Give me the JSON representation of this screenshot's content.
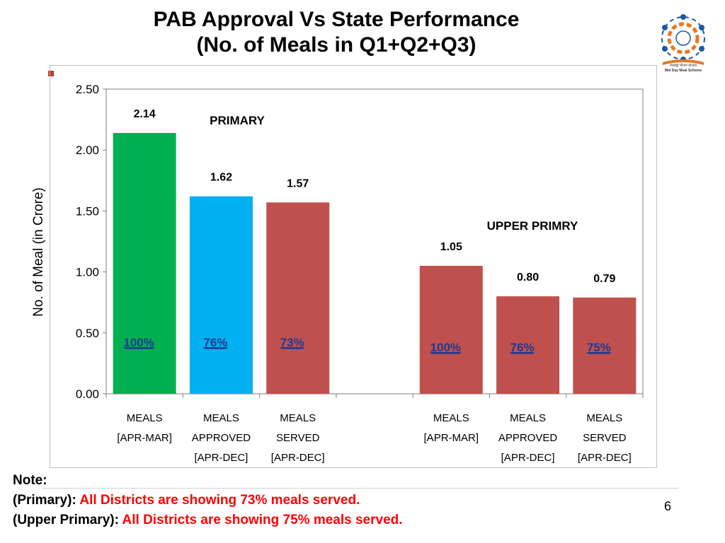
{
  "slide": {
    "title_line1": "PAB Approval  Vs State Performance",
    "title_line2": "(No. of Meals in Q1+Q2+Q3)",
    "logo_text_line1": "मध्याह्न भोजन योजना",
    "logo_text_line2": "Mid Day Meal Scheme",
    "page_number": "6"
  },
  "notes": {
    "heading": "Note:",
    "lines": [
      {
        "open": "(",
        "label": "Primary)",
        "sep": ": ",
        "text": "All Districts are showing  73% meals served."
      },
      {
        "open": "(",
        "label": "Upper Primary)",
        "sep": ": ",
        "text": "All Districts are showing 75% meals served."
      }
    ]
  },
  "chart_data": {
    "type": "bar",
    "ylabel": "No. of Meal  (in Crore)",
    "ylim": [
      0,
      2.5
    ],
    "yticks": [
      "0.00",
      "0.50",
      "1.00",
      "1.50",
      "2.00",
      "2.50"
    ],
    "grid": false,
    "groups": [
      {
        "label": "PRIMARY",
        "bars": [
          {
            "value": 2.14,
            "value_label": "2.14",
            "percent": "100%",
            "category": [
              "MEALS",
              "[APR-MAR]"
            ],
            "color": "#00b050"
          },
          {
            "value": 1.62,
            "value_label": "1.62",
            "percent": "76%",
            "category": [
              "MEALS",
              "APPROVED",
              "[APR-DEC]"
            ],
            "color": "#00b0f0"
          },
          {
            "value": 1.57,
            "value_label": "1.57",
            "percent": "73%",
            "category": [
              "MEALS",
              "SERVED",
              "[APR-DEC]"
            ],
            "color": "#c0504d"
          }
        ]
      },
      {
        "label": "UPPER PRIMRY",
        "bars": [
          {
            "value": 1.05,
            "value_label": "1.05",
            "percent": "100%",
            "category": [
              "MEALS",
              "[APR-MAR]"
            ],
            "color": "#c0504d"
          },
          {
            "value": 0.8,
            "value_label": "0.80",
            "percent": "76%",
            "category": [
              "MEALS",
              "APPROVED",
              "[APR-DEC]"
            ],
            "color": "#c0504d"
          },
          {
            "value": 0.79,
            "value_label": "0.79",
            "percent": "75%",
            "category": [
              "MEALS",
              "SERVED",
              "[APR-DEC]"
            ],
            "color": "#c0504d"
          }
        ]
      }
    ]
  }
}
